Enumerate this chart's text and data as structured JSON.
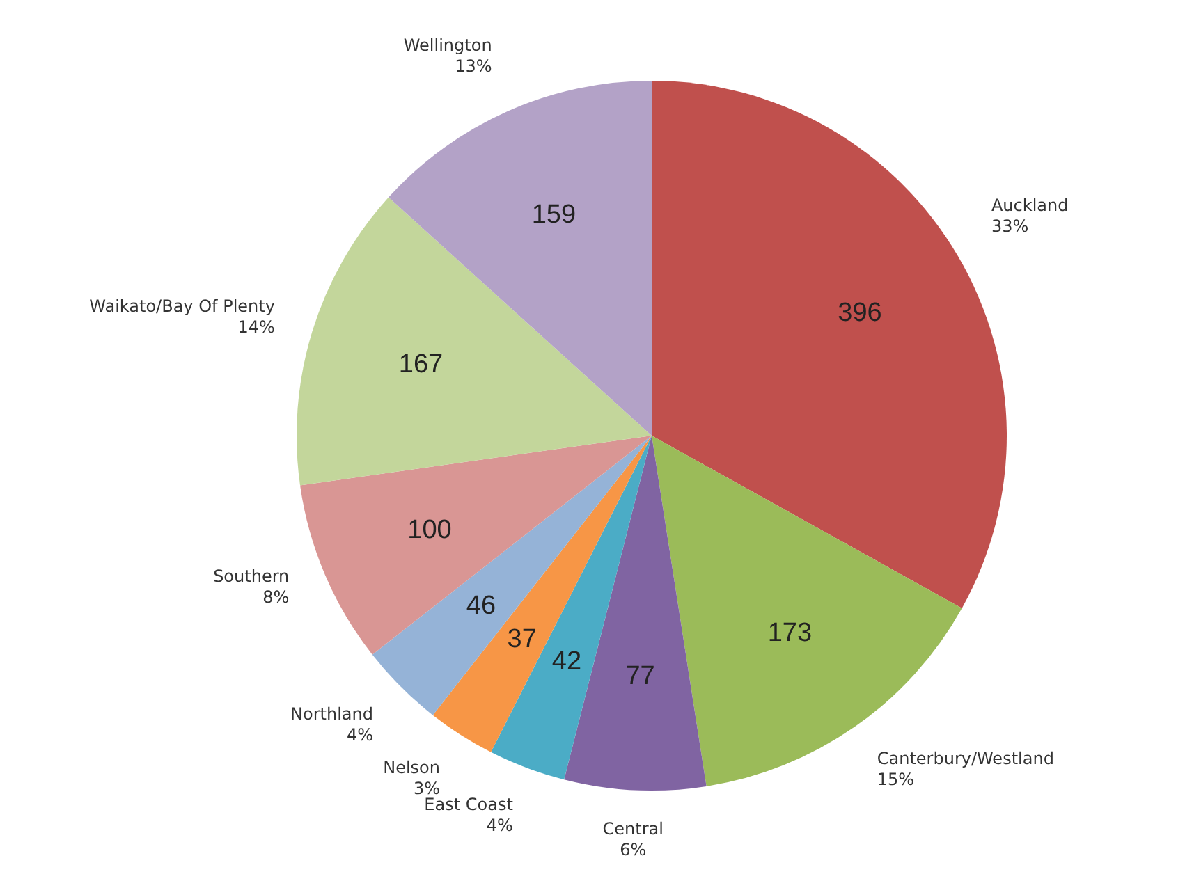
{
  "chart_data": {
    "type": "pie",
    "categories": [
      "Auckland",
      "Canterbury/Westland",
      "Central",
      "East Coast",
      "Nelson",
      "Northland",
      "Southern",
      "Waikato/Bay Of Plenty",
      "Wellington"
    ],
    "values": [
      396,
      173,
      77,
      42,
      37,
      46,
      100,
      167,
      159
    ],
    "colors": [
      "#c0504d",
      "#9bbb59",
      "#8064a2",
      "#4bacc6",
      "#f79646",
      "#95b3d7",
      "#d99694",
      "#c3d69b",
      "#b3a2c7"
    ],
    "annotations": [
      {
        "text": "33%",
        "x": "Auckland"
      },
      {
        "text": "15%",
        "x": "Canterbury/Westland"
      },
      {
        "text": "6%",
        "x": "Central"
      },
      {
        "text": "4%",
        "x": "East Coast"
      },
      {
        "text": "3%",
        "x": "Nelson"
      },
      {
        "text": "4%",
        "x": "Northland"
      },
      {
        "text": "8%",
        "x": "Southern"
      },
      {
        "text": "14%",
        "x": "Waikato/Bay Of Plenty"
      },
      {
        "text": "13%",
        "x": "Wellington"
      }
    ],
    "data_labels": true
  }
}
